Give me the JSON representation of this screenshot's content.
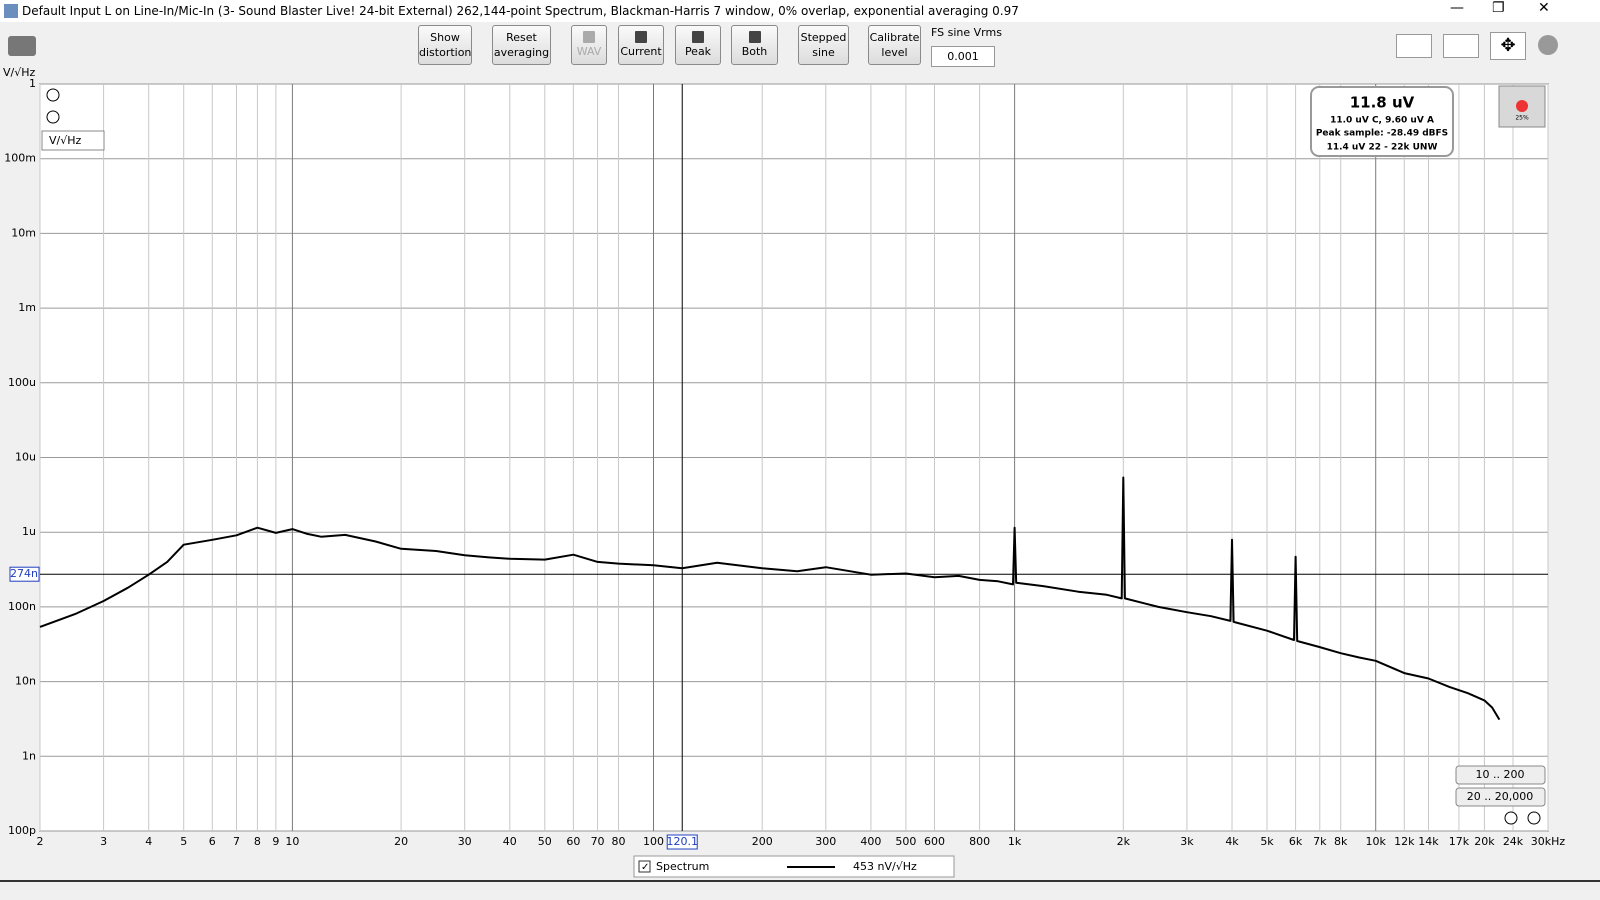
{
  "window": {
    "title": "Default Input L on Line-In/Mic-In (3- Sound Blaster Live! 24-bit External) 262,144-point Spectrum, Blackman-Harris 7 window, 0% overlap, exponential averaging 0.97"
  },
  "toolbar": {
    "show_distortion": [
      "Show",
      "distortion"
    ],
    "reset_averaging": [
      "Reset",
      "averaging"
    ],
    "wav": "WAV",
    "current": "Current",
    "peak": "Peak",
    "both": "Both",
    "stepped_sine": [
      "Stepped",
      "sine"
    ],
    "calibrate_level": [
      "Calibrate",
      "level"
    ],
    "fs_label": "FS sine Vrms",
    "fs_value": "0.001"
  },
  "chart_data": {
    "type": "line",
    "y_unit": "V/√Hz",
    "unit_selector": "V/√Hz",
    "log_x": true,
    "log_y": true,
    "grid": true,
    "xlim": [
      2,
      30000
    ],
    "ylim": [
      1e-10,
      1
    ],
    "xticks": [
      2,
      3,
      4,
      5,
      6,
      7,
      8,
      9,
      10,
      20,
      30,
      40,
      50,
      60,
      70,
      80,
      100,
      200,
      300,
      400,
      500,
      600,
      800,
      {
        "value": 1000,
        "label": "1k"
      },
      {
        "value": 2000,
        "label": "2k"
      },
      {
        "value": 3000,
        "label": "3k"
      },
      {
        "value": 4000,
        "label": "4k"
      },
      {
        "value": 5000,
        "label": "5k"
      },
      {
        "value": 6000,
        "label": "6k"
      },
      {
        "value": 7000,
        "label": "7k"
      },
      {
        "value": 8000,
        "label": "8k"
      },
      {
        "value": 10000,
        "label": "10k"
      },
      {
        "value": 12000,
        "label": "12k"
      },
      {
        "value": 14000,
        "label": "14k"
      },
      {
        "value": 17000,
        "label": "17k"
      },
      {
        "value": 20000,
        "label": "20k"
      },
      {
        "value": 24000,
        "label": "24k"
      },
      {
        "value": 30000,
        "label": "30kHz"
      }
    ],
    "yticks": [
      1,
      {
        "value": 0.1,
        "label": "100m"
      },
      {
        "value": 0.01,
        "label": "10m"
      },
      {
        "value": 0.001,
        "label": "1m"
      },
      {
        "value": 0.0001,
        "label": "100u"
      },
      {
        "value": 1e-05,
        "label": "10u"
      },
      {
        "value": 1e-06,
        "label": "1u"
      },
      {
        "value": 1e-07,
        "label": "100n"
      },
      {
        "value": 1e-08,
        "label": "10n"
      },
      {
        "value": 1e-09,
        "label": "1n"
      },
      {
        "value": 1e-10,
        "label": "100p"
      }
    ],
    "x": [
      2,
      2.5,
      3,
      3.5,
      4,
      4.5,
      5,
      6,
      7,
      8,
      9,
      10,
      11,
      12,
      14,
      17,
      20,
      25,
      30,
      35,
      40,
      50,
      60,
      70,
      80,
      100,
      120,
      150,
      200,
      250,
      300,
      400,
      500,
      600,
      700,
      800,
      900,
      990,
      1000,
      1010,
      1200,
      1500,
      1800,
      1980,
      2000,
      2020,
      2500,
      3000,
      3500,
      3960,
      4000,
      4040,
      5000,
      5940,
      6000,
      6060,
      7000,
      8000,
      9000,
      10000,
      12000,
      14000,
      16000,
      18000,
      20000,
      21000,
      22000
    ],
    "series": [
      {
        "name": "Spectrum",
        "color": "#000000",
        "legend_value": "453 nV/√Hz",
        "values": [
          5.4e-08,
          8e-08,
          1.2e-07,
          1.8e-07,
          2.7e-07,
          4e-07,
          6.8e-07,
          7.9e-07,
          9.1e-07,
          1.15e-06,
          9.8e-07,
          1.1e-06,
          9.5e-07,
          8.7e-07,
          9.2e-07,
          7.5e-07,
          6e-07,
          5.6e-07,
          4.9e-07,
          4.6e-07,
          4.4e-07,
          4.3e-07,
          5e-07,
          4e-07,
          3.8e-07,
          3.6e-07,
          3.3e-07,
          3.9e-07,
          3.3e-07,
          3e-07,
          3.4e-07,
          2.7e-07,
          2.8e-07,
          2.5e-07,
          2.6e-07,
          2.3e-07,
          2.2e-07,
          2e-07,
          1.15e-06,
          2.1e-07,
          1.9e-07,
          1.6e-07,
          1.45e-07,
          1.3e-07,
          5.4e-06,
          1.3e-07,
          1e-07,
          8.5e-08,
          7.5e-08,
          6.5e-08,
          7.9e-07,
          6.3e-08,
          4.8e-08,
          3.6e-08,
          4.7e-07,
          3.5e-08,
          2.9e-08,
          2.4e-08,
          2.1e-08,
          1.9e-08,
          1.3e-08,
          1.1e-08,
          8.5e-09,
          7e-09,
          5.6e-09,
          4.5e-09,
          3.1e-09
        ]
      }
    ],
    "cursor": {
      "x": {
        "value": 120.1,
        "label": "120.1"
      },
      "y": {
        "value": 2.74e-07,
        "label": "274n"
      }
    }
  },
  "readout": {
    "main": "11.8 uV",
    "lines": [
      "11.0 uV C, 9.60 uV A",
      "Peak sample: -28.49 dBFS",
      "11.4 uV 22 - 22k UNW"
    ]
  },
  "record": {
    "level": "25%"
  },
  "range_buttons": [
    "10 .. 200",
    "20 .. 20,000"
  ]
}
